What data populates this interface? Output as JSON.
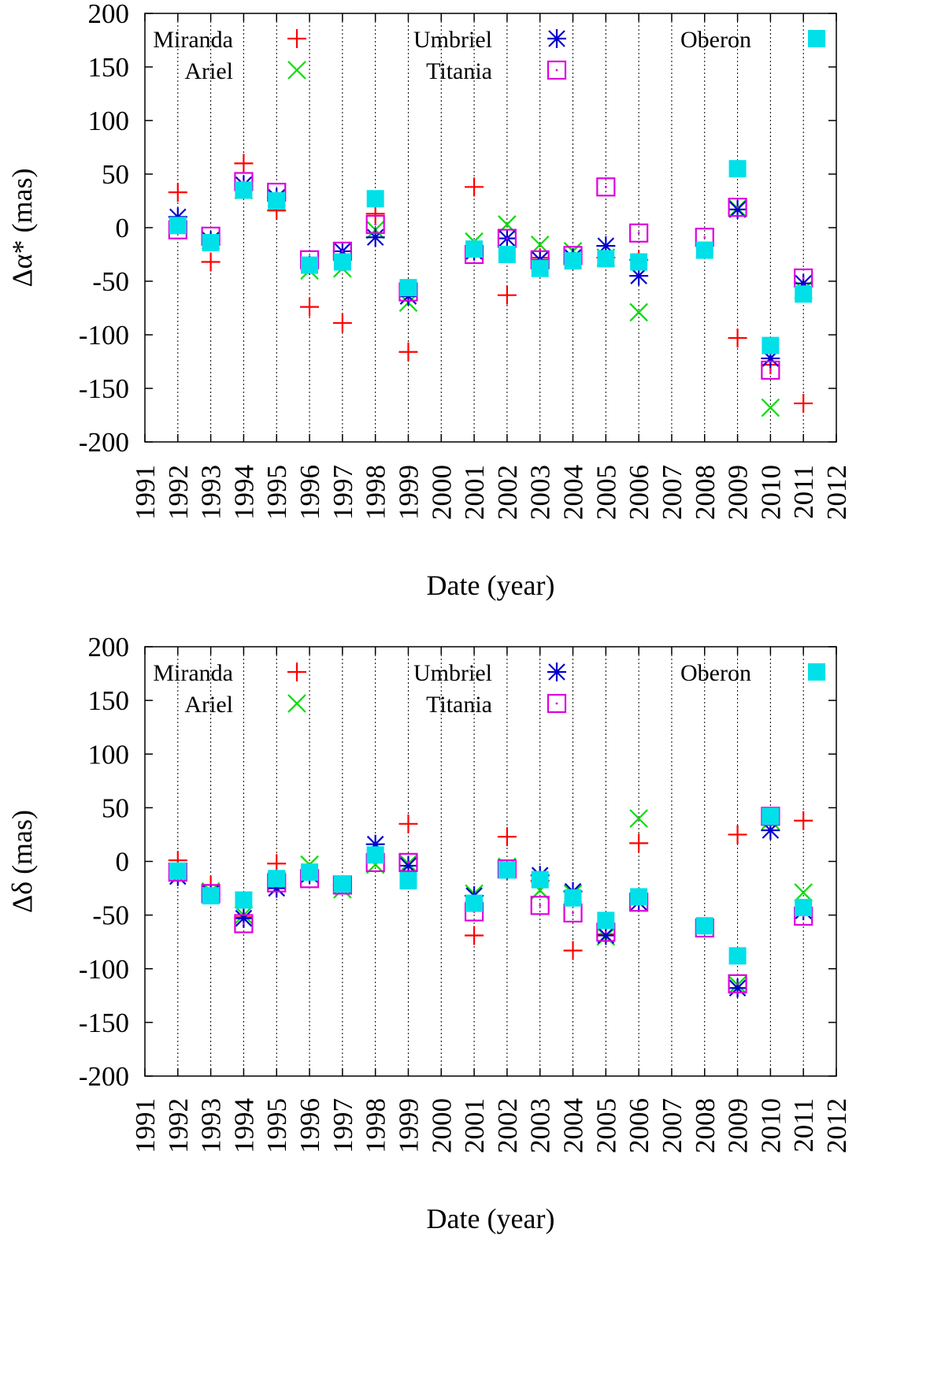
{
  "figure": {
    "name": "uranian-satellite-residuals"
  },
  "series_styles": {
    "Miranda": {
      "marker": "plus",
      "color": "#ff0000"
    },
    "Ariel": {
      "marker": "cross",
      "color": "#00dd00"
    },
    "Umbriel": {
      "marker": "star",
      "color": "#0000cc"
    },
    "Titania": {
      "marker": "open-square-dot",
      "color": "#dd00dd"
    },
    "Oberon": {
      "marker": "filled-square",
      "color": "#00e0e8"
    }
  },
  "chart_data": [
    {
      "type": "scatter",
      "title": "",
      "xlabel": "Date (year)",
      "ylabel": "Δα* (mas)",
      "xlim": [
        1991,
        2012
      ],
      "ylim": [
        -200,
        200
      ],
      "xticks": [
        1991,
        1992,
        1993,
        1994,
        1995,
        1996,
        1997,
        1998,
        1999,
        2000,
        2001,
        2002,
        2003,
        2004,
        2005,
        2006,
        2007,
        2008,
        2009,
        2010,
        2011,
        2012
      ],
      "xtick_labels": [
        "1991",
        "1992",
        "1993",
        "1994",
        "1995",
        "1996",
        "1997",
        "1998",
        "1999",
        "2000",
        "2001",
        "2002",
        "2003",
        "2004",
        "2005",
        "2006",
        "2007",
        "2008",
        "2009",
        "2010",
        "2011",
        "2012"
      ],
      "yticks": [
        -200,
        -150,
        -100,
        -50,
        0,
        50,
        100,
        150,
        200
      ],
      "ytick_labels": [
        "-200",
        "-150",
        "-100",
        "-50",
        "0",
        "50",
        "100",
        "150",
        "200"
      ],
      "grid": "vertical dotted lines at 1992-2011",
      "gridlines_x": [
        1992,
        1993,
        1994,
        1995,
        1996,
        1997,
        1998,
        1999,
        2000,
        2001,
        2002,
        2003,
        2004,
        2005,
        2006,
        2007,
        2008,
        2009,
        2010,
        2011
      ],
      "legend": [
        "Miranda",
        "Umbriel",
        "Oberon",
        "Ariel",
        "Titania"
      ],
      "legend_placement": "top",
      "series": [
        {
          "name": "Miranda",
          "x": [
            1992,
            1993,
            1994,
            1995,
            1996,
            1997,
            1998,
            1999,
            2001,
            2002,
            2003,
            2004,
            2005,
            2006,
            2009,
            2010,
            2011
          ],
          "y": [
            33,
            -32,
            60,
            16,
            -74,
            -89,
            13,
            -116,
            38,
            -63,
            -28,
            -30,
            -28,
            -30,
            -103,
            -128,
            -164
          ]
        },
        {
          "name": "Ariel",
          "x": [
            1992,
            1993,
            1994,
            1995,
            1996,
            1997,
            1998,
            1999,
            2001,
            2002,
            2003,
            2004,
            2005,
            2006,
            2009,
            2010,
            2011
          ],
          "y": [
            2,
            -12,
            35,
            28,
            -40,
            -38,
            -2,
            -70,
            -13,
            3,
            -16,
            -22,
            -28,
            -79,
            18,
            -168,
            -58
          ]
        },
        {
          "name": "Umbriel",
          "x": [
            1992,
            1993,
            1994,
            1995,
            1996,
            1997,
            1998,
            1999,
            2001,
            2002,
            2003,
            2004,
            2005,
            2006,
            2009,
            2010,
            2011
          ],
          "y": [
            10,
            -12,
            40,
            28,
            -35,
            -22,
            -9,
            -64,
            -22,
            -10,
            -30,
            -28,
            -17,
            -45,
            17,
            -122,
            -52
          ]
        },
        {
          "name": "Titania",
          "x": [
            1992,
            1993,
            1994,
            1995,
            1996,
            1997,
            1998,
            1999,
            2001,
            2002,
            2003,
            2004,
            2005,
            2006,
            2008,
            2009,
            2010,
            2011
          ],
          "y": [
            -2,
            -8,
            43,
            33,
            -30,
            -22,
            3,
            -60,
            -25,
            -10,
            -30,
            -26,
            38,
            -5,
            -9,
            19,
            -133,
            -47
          ]
        },
        {
          "name": "Oberon",
          "x": [
            1992,
            1993,
            1994,
            1995,
            1996,
            1997,
            1998,
            1999,
            2001,
            2002,
            2003,
            2004,
            2005,
            2006,
            2008,
            2009,
            2010,
            2011
          ],
          "y": [
            2,
            -14,
            35,
            25,
            -35,
            -32,
            27,
            -56,
            -20,
            -25,
            -38,
            -31,
            -29,
            -32,
            -21,
            55,
            -110,
            -62
          ]
        }
      ]
    },
    {
      "type": "scatter",
      "title": "",
      "xlabel": "Date (year)",
      "ylabel": "Δδ (mas)",
      "xlim": [
        1991,
        2012
      ],
      "ylim": [
        -200,
        200
      ],
      "xticks": [
        1991,
        1992,
        1993,
        1994,
        1995,
        1996,
        1997,
        1998,
        1999,
        2000,
        2001,
        2002,
        2003,
        2004,
        2005,
        2006,
        2007,
        2008,
        2009,
        2010,
        2011,
        2012
      ],
      "xtick_labels": [
        "1991",
        "1992",
        "1993",
        "1994",
        "1995",
        "1996",
        "1997",
        "1998",
        "1999",
        "2000",
        "2001",
        "2002",
        "2003",
        "2004",
        "2005",
        "2006",
        "2007",
        "2008",
        "2009",
        "2010",
        "2011",
        "2012"
      ],
      "yticks": [
        -200,
        -150,
        -100,
        -50,
        0,
        50,
        100,
        150,
        200
      ],
      "ytick_labels": [
        "-200",
        "-150",
        "-100",
        "-50",
        "0",
        "50",
        "100",
        "150",
        "200"
      ],
      "grid": "vertical dotted lines at 1992-2011",
      "gridlines_x": [
        1992,
        1993,
        1994,
        1995,
        1996,
        1997,
        1998,
        1999,
        2000,
        2001,
        2002,
        2003,
        2004,
        2005,
        2006,
        2007,
        2008,
        2009,
        2010,
        2011
      ],
      "legend": [
        "Miranda",
        "Umbriel",
        "Oberon",
        "Ariel",
        "Titania"
      ],
      "legend_placement": "top",
      "series": [
        {
          "name": "Miranda",
          "x": [
            1992,
            1993,
            1994,
            1995,
            1996,
            1997,
            1998,
            1999,
            2001,
            2002,
            2003,
            2004,
            2005,
            2006,
            2009,
            2010,
            2011
          ],
          "y": [
            1,
            -22,
            -52,
            -2,
            -10,
            -22,
            4,
            35,
            -69,
            23,
            -18,
            -83,
            -68,
            17,
            25,
            35,
            38
          ]
        },
        {
          "name": "Ariel",
          "x": [
            1992,
            1993,
            1994,
            1995,
            1996,
            1997,
            1998,
            1999,
            2001,
            2002,
            2003,
            2004,
            2005,
            2006,
            2009,
            2010,
            2011
          ],
          "y": [
            -10,
            -28,
            -50,
            -18,
            -3,
            -26,
            -3,
            -2,
            -30,
            -5,
            -27,
            -30,
            -70,
            40,
            -115,
            38,
            -29
          ]
        },
        {
          "name": "Umbriel",
          "x": [
            1992,
            1993,
            1994,
            1995,
            1996,
            1997,
            1998,
            1999,
            2001,
            2002,
            2003,
            2004,
            2005,
            2006,
            2009,
            2010,
            2011
          ],
          "y": [
            -14,
            -30,
            -53,
            -25,
            -12,
            -22,
            16,
            -4,
            -32,
            -8,
            -13,
            -28,
            -69,
            -38,
            -118,
            29,
            -46
          ]
        },
        {
          "name": "Titania",
          "x": [
            1992,
            1993,
            1994,
            1995,
            1996,
            1997,
            1998,
            1999,
            2001,
            2002,
            2003,
            2004,
            2005,
            2006,
            2008,
            2009,
            2010,
            2011
          ],
          "y": [
            -10,
            -30,
            -58,
            -20,
            -16,
            -22,
            -1,
            -1,
            -47,
            -7,
            -41,
            -48,
            -66,
            -38,
            -62,
            -114,
            42,
            -51
          ]
        },
        {
          "name": "Oberon",
          "x": [
            1992,
            1993,
            1994,
            1995,
            1996,
            1997,
            1998,
            1999,
            2001,
            2002,
            2003,
            2004,
            2005,
            2006,
            2008,
            2009,
            2010,
            2011
          ],
          "y": [
            -9,
            -32,
            -36,
            -16,
            -10,
            -21,
            6,
            -18,
            -39,
            -8,
            -17,
            -34,
            -55,
            -33,
            -60,
            -88,
            42,
            -43
          ]
        }
      ]
    }
  ]
}
